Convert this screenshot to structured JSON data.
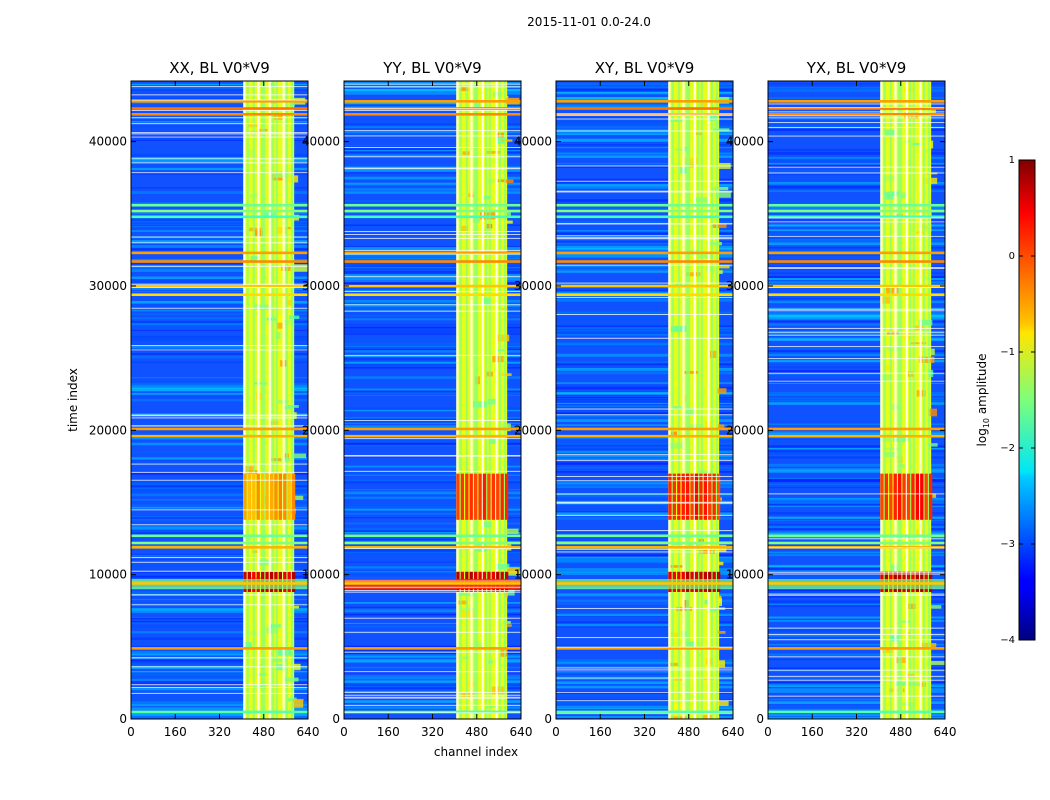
{
  "figure": {
    "suptitle": "2015-11-01 0.0-24.0",
    "xlabel": "channel index",
    "ylabel": "time index"
  },
  "chart_data": {
    "type": "heatmap",
    "x_range": [
      0,
      640
    ],
    "y_range": [
      0,
      44200
    ],
    "x_ticks": [
      0,
      160,
      320,
      480,
      640
    ],
    "y_ticks": [
      0,
      10000,
      20000,
      30000,
      40000
    ],
    "panels": [
      {
        "title": "XX, BL V0*V9"
      },
      {
        "title": "YY, BL V0*V9"
      },
      {
        "title": "XY, BL V0*V9"
      },
      {
        "title": "YX, BL V0*V9"
      }
    ],
    "active_band": {
      "channel_start": 406,
      "channel_end": 590
    },
    "rfi_channel_columns": [
      406,
      418,
      440,
      457,
      470,
      477,
      498,
      510,
      523,
      548,
      560,
      578
    ],
    "strong_time_bands": [
      {
        "t_start": 8800,
        "t_end": 10200,
        "log10_amp": 0.8
      },
      {
        "t_start": 13800,
        "t_end": 17000,
        "log10_amp": 0.4
      }
    ],
    "rfi_rows": [
      {
        "t": 42800,
        "log10_amp": -0.4
      },
      {
        "t": 42300,
        "log10_amp": -0.2
      },
      {
        "t": 41900,
        "log10_amp": -0.3
      },
      {
        "t": 35600,
        "log10_amp": -1.6
      },
      {
        "t": 35200,
        "log10_amp": -1.5
      },
      {
        "t": 34800,
        "log10_amp": -1.8
      },
      {
        "t": 32300,
        "log10_amp": -0.4
      },
      {
        "t": 31700,
        "log10_amp": -0.3
      },
      {
        "t": 30000,
        "log10_amp": -0.6
      },
      {
        "t": 29400,
        "log10_amp": -0.7
      },
      {
        "t": 20100,
        "log10_amp": -0.4
      },
      {
        "t": 19600,
        "log10_amp": -0.5
      },
      {
        "t": 12700,
        "log10_amp": -1.6
      },
      {
        "t": 12200,
        "log10_amp": -1.5
      },
      {
        "t": 11900,
        "log10_amp": -0.5
      },
      {
        "t": 9400,
        "log10_amp": -0.6
      },
      {
        "t": 4900,
        "log10_amp": -0.4
      },
      {
        "t": 500,
        "log10_amp": -1.7
      }
    ],
    "colorbar": {
      "label": "log",
      "label_sub": "10",
      "label_suffix": " amplitude",
      "min": -4,
      "max": 1,
      "ticks": [
        1,
        0,
        -1,
        -2,
        -3,
        -4
      ],
      "tick_labels": [
        "1",
        "0",
        "−1",
        "−2",
        "−3",
        "−4"
      ]
    }
  }
}
